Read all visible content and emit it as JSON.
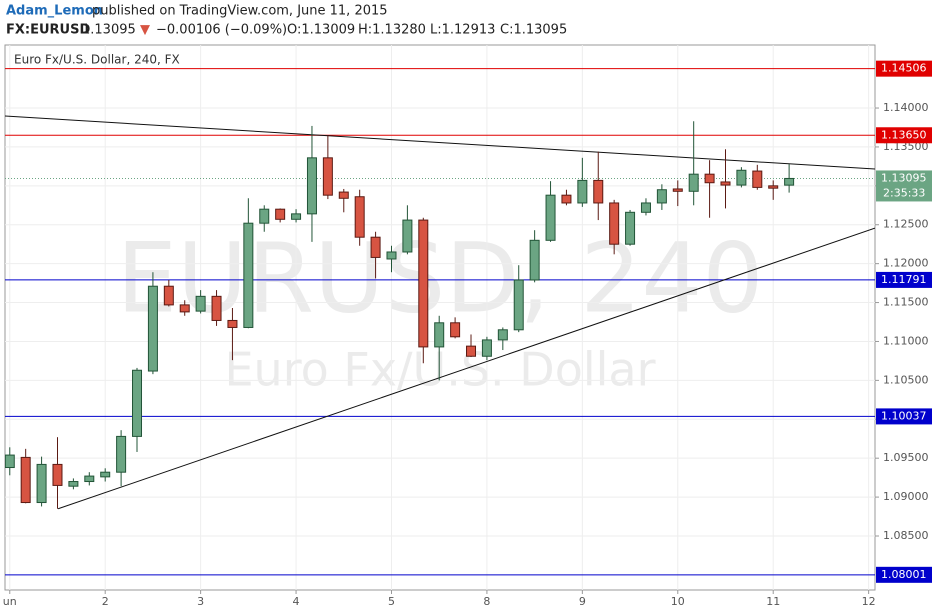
{
  "header": {
    "author": "Adam_Lemon",
    "published": "published on TradingView.com, June 11, 2015",
    "symbol": "FX:EURUSD",
    "price": "1.13095",
    "arrow": "▼",
    "change": "−0.00106 (−0.09%)",
    "open": "O:1.13009",
    "high": "H:1.13280",
    "low": "L:1.12913",
    "close": "C:1.13095"
  },
  "chart_data": {
    "type": "candlestick",
    "title": "Euro Fx/U.S. Dollar, 240, FX",
    "watermark": "EURUSD, 240",
    "watermark_subtitle": "Euro Fx/U.S. Dollar",
    "up_color": "#6ba583",
    "up_border": "#225437",
    "down_color": "#d75442",
    "down_border": "#5b1a13",
    "open": [
      1.0938,
      1.0951,
      1.0893,
      1.0942,
      1.0914,
      1.092,
      1.0926,
      1.0932,
      1.0978,
      1.1062,
      1.1171,
      1.1147,
      1.1139,
      1.1158,
      1.1127,
      1.1118,
      1.1252,
      1.127,
      1.1257,
      1.1264,
      1.1336,
      1.1292,
      1.1286,
      1.1234,
      1.1206,
      1.1215,
      1.1256,
      1.1093,
      1.1124,
      1.1094,
      1.1081,
      1.1102,
      1.1115,
      1.1179,
      1.123,
      1.1288,
      1.1278,
      1.1307,
      1.1278,
      1.1225,
      1.1266,
      1.1278,
      1.1296,
      1.1293,
      1.1315,
      1.1305,
      1.1301,
      1.1319,
      1.13,
      1.13009
    ],
    "high": [
      1.0964,
      1.0962,
      1.0952,
      1.0977,
      1.0924,
      1.0932,
      1.0937,
      1.0986,
      1.1066,
      1.1189,
      1.1179,
      1.1153,
      1.1166,
      1.1166,
      1.1143,
      1.1284,
      1.1275,
      1.1271,
      1.127,
      1.1377,
      1.1364,
      1.1296,
      1.1295,
      1.1241,
      1.1223,
      1.1275,
      1.1259,
      1.1133,
      1.1131,
      1.1109,
      1.1106,
      1.1118,
      1.1198,
      1.1243,
      1.1306,
      1.1295,
      1.1336,
      1.1344,
      1.1282,
      1.1269,
      1.1284,
      1.1302,
      1.1307,
      1.1383,
      1.1333,
      1.1347,
      1.1324,
      1.1327,
      1.1307,
      1.1328
    ],
    "low": [
      1.0928,
      1.0892,
      1.0888,
      1.0885,
      1.091,
      1.0915,
      1.092,
      1.0914,
      1.0958,
      1.1058,
      1.1145,
      1.1133,
      1.1136,
      1.112,
      1.1076,
      1.1117,
      1.1241,
      1.1253,
      1.1253,
      1.1228,
      1.1283,
      1.1266,
      1.1223,
      1.1181,
      1.1189,
      1.1212,
      1.1072,
      1.105,
      1.1104,
      1.108,
      1.1076,
      1.1089,
      1.1112,
      1.1176,
      1.1228,
      1.1275,
      1.1273,
      1.1256,
      1.1212,
      1.1223,
      1.1262,
      1.1269,
      1.1274,
      1.1275,
      1.1259,
      1.1271,
      1.1298,
      1.1295,
      1.1282,
      1.12913
    ],
    "close": [
      1.0954,
      1.0893,
      1.0942,
      1.0915,
      1.092,
      1.0927,
      1.0932,
      1.0978,
      1.1063,
      1.1171,
      1.1147,
      1.1138,
      1.1158,
      1.1127,
      1.1118,
      1.1252,
      1.127,
      1.1257,
      1.1264,
      1.1336,
      1.1288,
      1.1284,
      1.1234,
      1.1208,
      1.1215,
      1.1256,
      1.1093,
      1.1124,
      1.1106,
      1.1081,
      1.1102,
      1.1115,
      1.1179,
      1.123,
      1.1288,
      1.1278,
      1.1307,
      1.1278,
      1.1225,
      1.1266,
      1.1278,
      1.1295,
      1.1293,
      1.1315,
      1.1304,
      1.1301,
      1.132,
      1.1298,
      1.1297,
      1.13095
    ],
    "xlim": [
      -0.3,
      54.4
    ],
    "xticks": [
      {
        "value": 0,
        "label": "un"
      },
      {
        "value": 6,
        "label": "2"
      },
      {
        "value": 12,
        "label": "3"
      },
      {
        "value": 18,
        "label": "4"
      },
      {
        "value": 24,
        "label": "5"
      },
      {
        "value": 30,
        "label": "8"
      },
      {
        "value": 36,
        "label": "9"
      },
      {
        "value": 42,
        "label": "10"
      },
      {
        "value": 48,
        "label": "11"
      },
      {
        "value": 54,
        "label": "12"
      }
    ],
    "ylim": [
      1.07806,
      1.1481
    ],
    "yticks": [
      {
        "value": 1.085,
        "label": "1.08500"
      },
      {
        "value": 1.09,
        "label": "1.09000"
      },
      {
        "value": 1.095,
        "label": "1.09500"
      },
      {
        "value": 1.1,
        "label": "1.10000"
      },
      {
        "value": 1.105,
        "label": "1.10500"
      },
      {
        "value": 1.11,
        "label": "1.11000"
      },
      {
        "value": 1.115,
        "label": "1.11500"
      },
      {
        "value": 1.12,
        "label": "1.12000"
      },
      {
        "value": 1.125,
        "label": "1.12500"
      },
      {
        "value": 1.13,
        "label": "1.13000"
      },
      {
        "value": 1.135,
        "label": "1.13500"
      },
      {
        "value": 1.14,
        "label": "1.14000"
      }
    ],
    "grid": true,
    "hlines": [
      {
        "value": 1.14506,
        "label": "1.14506",
        "color": "#e00000"
      },
      {
        "value": 1.1365,
        "label": "1.13650",
        "color": "#e00000"
      },
      {
        "value": 1.11791,
        "label": "1.11791",
        "color": "#0000cc"
      },
      {
        "value": 1.10037,
        "label": "1.10037",
        "color": "#0000cc"
      },
      {
        "value": 1.08001,
        "label": "1.08001",
        "color": "#0000cc"
      }
    ],
    "last_price": {
      "value": 1.13095,
      "label": "1.13095",
      "countdown": "2:35:33",
      "color": "#6ba583"
    },
    "trendlines": [
      {
        "x": [
          -0.3,
          54.4
        ],
        "y": [
          1.13897,
          1.13216
        ]
      },
      {
        "x": [
          3.04,
          54.4
        ],
        "y": [
          1.0885,
          1.12457
        ]
      }
    ]
  }
}
